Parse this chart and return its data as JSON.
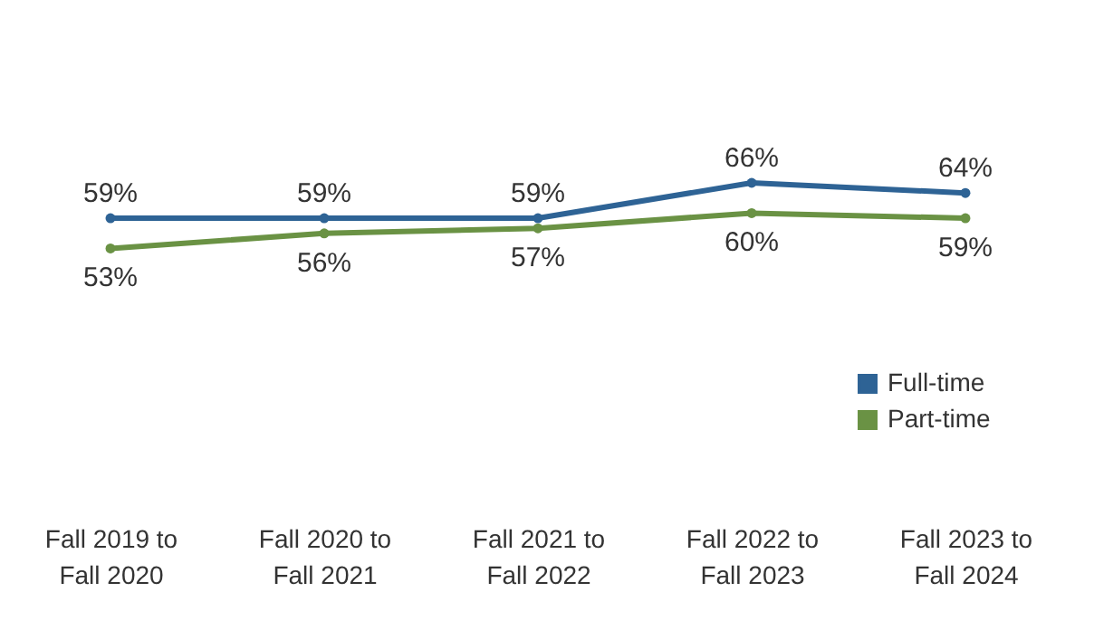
{
  "chart_data": {
    "type": "line",
    "categories": [
      "Fall 2019 to Fall 2020",
      "Fall 2020 to Fall 2021",
      "Fall 2021 to Fall 2022",
      "Fall 2022 to Fall 2023",
      "Fall 2023 to Fall 2024"
    ],
    "series": [
      {
        "name": "Full-time",
        "color": "#2e6395",
        "values": [
          59,
          59,
          59,
          66,
          64
        ],
        "value_labels": [
          "59%",
          "59%",
          "59%",
          "66%",
          "64%"
        ]
      },
      {
        "name": "Part-time",
        "color": "#6a9244",
        "values": [
          53,
          56,
          57,
          60,
          59
        ],
        "value_labels": [
          "53%",
          "56%",
          "57%",
          "60%",
          "59%"
        ]
      }
    ],
    "tick_labels": "x",
    "legend": "bottom right",
    "marker": "circle",
    "line_style": "solid"
  }
}
